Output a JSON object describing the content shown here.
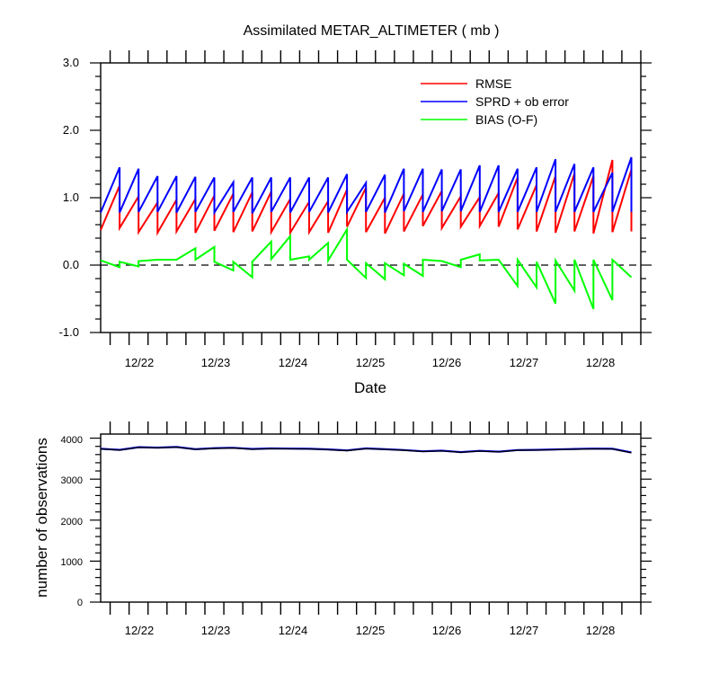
{
  "chart_data": [
    {
      "type": "line",
      "title": "Assimilated METAR_ALTIMETER ( mb )",
      "xlabel": "Date",
      "ylabel": "",
      "ylim": [
        -1.0,
        3.0
      ],
      "yticks": [
        "3.0",
        "2.0",
        "1.0",
        "0.0",
        "-1.0"
      ],
      "x_tick_labels": [
        "12/22",
        "12/23",
        "12/24",
        "12/25",
        "12/26",
        "12/27",
        "12/28"
      ],
      "x_unit": "date (December)",
      "xlim": [
        21.375,
        28.5
      ],
      "reference_line": {
        "y": 0.0,
        "style": "dashed"
      },
      "legend_position": "top-right",
      "colors": {
        "RMSE": "#ff0000",
        "SPRD + ob error": "#0000ff",
        "BIAS (O-F)": "#00ff00"
      },
      "series": [
        {
          "name": "RMSE",
          "color": "#ff0000",
          "points": [
            [
              21.375,
              0.52
            ],
            [
              21.625,
              1.18
            ],
            [
              21.625,
              0.55
            ],
            [
              21.875,
              1.02
            ],
            [
              21.875,
              0.49
            ],
            [
              22.125,
              0.93
            ],
            [
              22.125,
              0.48
            ],
            [
              22.375,
              0.97
            ],
            [
              22.375,
              0.5
            ],
            [
              22.625,
              0.98
            ],
            [
              22.625,
              0.48
            ],
            [
              22.875,
              1.03
            ],
            [
              22.875,
              0.51
            ],
            [
              23.125,
              1.06
            ],
            [
              23.125,
              0.49
            ],
            [
              23.375,
              1.08
            ],
            [
              23.375,
              0.5
            ],
            [
              23.625,
              1.09
            ],
            [
              23.625,
              0.49
            ],
            [
              23.875,
              0.98
            ],
            [
              23.875,
              0.48
            ],
            [
              24.125,
              0.94
            ],
            [
              24.125,
              0.49
            ],
            [
              24.375,
              0.95
            ],
            [
              24.375,
              0.48
            ],
            [
              24.625,
              1.12
            ],
            [
              24.625,
              0.57
            ],
            [
              24.875,
              1.15
            ],
            [
              24.875,
              0.49
            ],
            [
              25.125,
              1.0
            ],
            [
              25.125,
              0.47
            ],
            [
              25.375,
              1.06
            ],
            [
              25.375,
              0.5
            ],
            [
              25.625,
              1.05
            ],
            [
              25.625,
              0.58
            ],
            [
              25.875,
              1.1
            ],
            [
              25.875,
              0.55
            ],
            [
              26.125,
              1.02
            ],
            [
              26.125,
              0.57
            ],
            [
              26.375,
              1.01
            ],
            [
              26.375,
              0.58
            ],
            [
              26.625,
              1.07
            ],
            [
              26.625,
              0.57
            ],
            [
              26.875,
              1.3
            ],
            [
              26.875,
              0.53
            ],
            [
              27.125,
              1.19
            ],
            [
              27.125,
              0.5
            ],
            [
              27.375,
              1.32
            ],
            [
              27.375,
              0.48
            ],
            [
              27.625,
              1.36
            ],
            [
              27.625,
              0.5
            ],
            [
              27.875,
              1.32
            ],
            [
              27.875,
              0.47
            ],
            [
              28.125,
              1.56
            ],
            [
              28.125,
              0.49
            ],
            [
              28.375,
              1.42
            ],
            [
              28.375,
              0.5
            ]
          ]
        },
        {
          "name": "SPRD + ob error",
          "color": "#0000ff",
          "points": [
            [
              21.375,
              0.78
            ],
            [
              21.625,
              1.45
            ],
            [
              21.625,
              0.78
            ],
            [
              21.875,
              1.43
            ],
            [
              21.875,
              0.79
            ],
            [
              22.125,
              1.32
            ],
            [
              22.125,
              0.79
            ],
            [
              22.375,
              1.32
            ],
            [
              22.375,
              0.78
            ],
            [
              22.625,
              1.31
            ],
            [
              22.625,
              0.79
            ],
            [
              22.875,
              1.3
            ],
            [
              22.875,
              0.78
            ],
            [
              23.125,
              1.23
            ],
            [
              23.125,
              0.79
            ],
            [
              23.375,
              1.3
            ],
            [
              23.375,
              0.77
            ],
            [
              23.625,
              1.3
            ],
            [
              23.625,
              0.79
            ],
            [
              23.875,
              1.3
            ],
            [
              23.875,
              0.78
            ],
            [
              24.125,
              1.3
            ],
            [
              24.125,
              0.79
            ],
            [
              24.375,
              1.3
            ],
            [
              24.375,
              0.78
            ],
            [
              24.625,
              1.35
            ],
            [
              24.625,
              0.79
            ],
            [
              24.875,
              1.22
            ],
            [
              24.875,
              0.79
            ],
            [
              25.125,
              1.34
            ],
            [
              25.125,
              0.78
            ],
            [
              25.375,
              1.43
            ],
            [
              25.375,
              0.8
            ],
            [
              25.625,
              1.43
            ],
            [
              25.625,
              0.79
            ],
            [
              25.875,
              1.42
            ],
            [
              25.875,
              0.8
            ],
            [
              26.125,
              1.42
            ],
            [
              26.125,
              0.8
            ],
            [
              26.375,
              1.48
            ],
            [
              26.375,
              0.79
            ],
            [
              26.625,
              1.48
            ],
            [
              26.625,
              0.79
            ],
            [
              26.875,
              1.43
            ],
            [
              26.875,
              0.79
            ],
            [
              27.125,
              1.45
            ],
            [
              27.125,
              0.79
            ],
            [
              27.375,
              1.57
            ],
            [
              27.375,
              0.79
            ],
            [
              27.625,
              1.5
            ],
            [
              27.625,
              0.79
            ],
            [
              27.875,
              1.45
            ],
            [
              27.875,
              0.79
            ],
            [
              28.125,
              1.37
            ],
            [
              28.125,
              0.79
            ],
            [
              28.375,
              1.6
            ],
            [
              28.375,
              0.79
            ]
          ]
        },
        {
          "name": "BIAS (O-F)",
          "color": "#00ff00",
          "points": [
            [
              21.375,
              0.07
            ],
            [
              21.625,
              -0.03
            ],
            [
              21.625,
              0.05
            ],
            [
              21.875,
              -0.02
            ],
            [
              21.875,
              0.06
            ],
            [
              22.125,
              0.08
            ],
            [
              22.375,
              0.08
            ],
            [
              22.625,
              0.25
            ],
            [
              22.625,
              0.08
            ],
            [
              22.875,
              0.27
            ],
            [
              22.875,
              0.05
            ],
            [
              23.125,
              -0.08
            ],
            [
              23.125,
              0.05
            ],
            [
              23.375,
              -0.18
            ],
            [
              23.375,
              0.05
            ],
            [
              23.625,
              0.35
            ],
            [
              23.625,
              0.09
            ],
            [
              23.875,
              0.43
            ],
            [
              23.875,
              0.08
            ],
            [
              24.125,
              0.13
            ],
            [
              24.125,
              0.08
            ],
            [
              24.375,
              0.33
            ],
            [
              24.375,
              0.07
            ],
            [
              24.625,
              0.53
            ],
            [
              24.625,
              0.08
            ],
            [
              24.875,
              -0.19
            ],
            [
              24.875,
              0.03
            ],
            [
              25.125,
              -0.21
            ],
            [
              25.125,
              0.03
            ],
            [
              25.375,
              -0.15
            ],
            [
              25.375,
              0.02
            ],
            [
              25.625,
              -0.16
            ],
            [
              25.625,
              0.08
            ],
            [
              25.875,
              0.06
            ],
            [
              26.125,
              -0.03
            ],
            [
              26.125,
              0.08
            ],
            [
              26.375,
              0.16
            ],
            [
              26.375,
              0.07
            ],
            [
              26.625,
              0.08
            ],
            [
              26.875,
              -0.31
            ],
            [
              26.875,
              0.08
            ],
            [
              27.125,
              -0.33
            ],
            [
              27.125,
              0.05
            ],
            [
              27.375,
              -0.57
            ],
            [
              27.375,
              0.07
            ],
            [
              27.625,
              -0.38
            ],
            [
              27.625,
              0.08
            ],
            [
              27.875,
              -0.65
            ],
            [
              27.875,
              0.08
            ],
            [
              28.125,
              -0.52
            ],
            [
              28.125,
              0.08
            ],
            [
              28.375,
              -0.18
            ]
          ]
        }
      ]
    },
    {
      "type": "line",
      "title": "",
      "xlabel": "",
      "ylabel": "number of observations",
      "ylim": [
        0,
        4100
      ],
      "yticks": [
        "4000",
        "3000",
        "2000",
        "1000",
        "0"
      ],
      "x_tick_labels": [
        "12/22",
        "12/23",
        "12/24",
        "12/25",
        "12/26",
        "12/27",
        "12/28"
      ],
      "x_unit": "date (December)",
      "xlim": [
        21.375,
        28.5
      ],
      "series": [
        {
          "color": "#0000ff",
          "points": [
            [
              21.375,
              3740
            ],
            [
              21.625,
              3715
            ],
            [
              21.875,
              3780
            ],
            [
              22.125,
              3770
            ],
            [
              22.375,
              3785
            ],
            [
              22.625,
              3730
            ],
            [
              22.875,
              3755
            ],
            [
              23.125,
              3765
            ],
            [
              23.375,
              3735
            ],
            [
              23.625,
              3750
            ],
            [
              23.875,
              3745
            ],
            [
              24.125,
              3740
            ],
            [
              24.375,
              3725
            ],
            [
              24.625,
              3700
            ],
            [
              24.875,
              3750
            ],
            [
              25.125,
              3730
            ],
            [
              25.375,
              3710
            ],
            [
              25.625,
              3680
            ],
            [
              25.875,
              3695
            ],
            [
              26.125,
              3660
            ],
            [
              26.375,
              3690
            ],
            [
              26.625,
              3670
            ],
            [
              26.875,
              3710
            ],
            [
              27.125,
              3715
            ],
            [
              27.375,
              3725
            ],
            [
              27.625,
              3735
            ],
            [
              27.875,
              3745
            ],
            [
              28.125,
              3740
            ],
            [
              28.375,
              3650
            ]
          ]
        },
        {
          "color": "#000000",
          "points": [
            [
              21.375,
              3735
            ],
            [
              21.625,
              3710
            ],
            [
              21.875,
              3775
            ],
            [
              22.125,
              3765
            ],
            [
              22.375,
              3780
            ],
            [
              22.625,
              3725
            ],
            [
              22.875,
              3750
            ],
            [
              23.125,
              3760
            ],
            [
              23.375,
              3730
            ],
            [
              23.625,
              3745
            ],
            [
              23.875,
              3740
            ],
            [
              24.125,
              3735
            ],
            [
              24.375,
              3720
            ],
            [
              24.625,
              3695
            ],
            [
              24.875,
              3745
            ],
            [
              25.125,
              3725
            ],
            [
              25.375,
              3705
            ],
            [
              25.625,
              3675
            ],
            [
              25.875,
              3690
            ],
            [
              26.125,
              3655
            ],
            [
              26.375,
              3685
            ],
            [
              26.625,
              3665
            ],
            [
              26.875,
              3705
            ],
            [
              27.125,
              3710
            ],
            [
              27.375,
              3720
            ],
            [
              27.625,
              3730
            ],
            [
              27.875,
              3740
            ],
            [
              28.125,
              3735
            ],
            [
              28.375,
              3645
            ]
          ]
        }
      ]
    }
  ]
}
